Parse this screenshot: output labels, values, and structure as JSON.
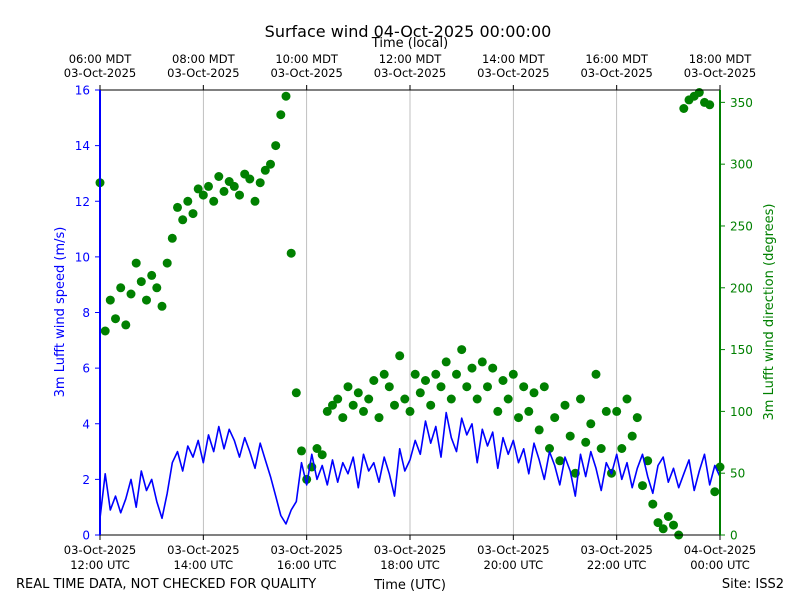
{
  "chart_data": {
    "type": "line",
    "title": "Surface wind 04-Oct-2025 00:00:00",
    "top_axis_label": "Time (local)",
    "xlabel": "Time (UTC)",
    "ylabel_left": "3m Lufft wind speed (m/s)",
    "ylabel_right": "3m Lufft wind direction (degrees)",
    "footer_left": "REAL TIME DATA, NOT CHECKED FOR QUALITY",
    "footer_right": "Site: ISS2",
    "x_range_hours_utc": [
      12,
      24
    ],
    "ylim_left": [
      0,
      16
    ],
    "ylim_right": [
      0,
      360
    ],
    "grid": "vertical",
    "colors": {
      "speed": "#0000ff",
      "direction": "#008000",
      "grid": "#b0b0b0"
    },
    "bottom_ticks": [
      {
        "hour": 12,
        "line1": "03-Oct-2025",
        "line2": "12:00 UTC"
      },
      {
        "hour": 14,
        "line1": "03-Oct-2025",
        "line2": "14:00 UTC"
      },
      {
        "hour": 16,
        "line1": "03-Oct-2025",
        "line2": "16:00 UTC"
      },
      {
        "hour": 18,
        "line1": "03-Oct-2025",
        "line2": "18:00 UTC"
      },
      {
        "hour": 20,
        "line1": "03-Oct-2025",
        "line2": "20:00 UTC"
      },
      {
        "hour": 22,
        "line1": "03-Oct-2025",
        "line2": "22:00 UTC"
      },
      {
        "hour": 24,
        "line1": "04-Oct-2025",
        "line2": "00:00 UTC"
      }
    ],
    "top_ticks": [
      {
        "hour": 12,
        "line1": "06:00 MDT",
        "line2": "03-Oct-2025"
      },
      {
        "hour": 14,
        "line1": "08:00 MDT",
        "line2": "03-Oct-2025"
      },
      {
        "hour": 16,
        "line1": "10:00 MDT",
        "line2": "03-Oct-2025"
      },
      {
        "hour": 18,
        "line1": "12:00 MDT",
        "line2": "03-Oct-2025"
      },
      {
        "hour": 20,
        "line1": "14:00 MDT",
        "line2": "03-Oct-2025"
      },
      {
        "hour": 22,
        "line1": "16:00 MDT",
        "line2": "03-Oct-2025"
      },
      {
        "hour": 24,
        "line1": "18:00 MDT",
        "line2": "03-Oct-2025"
      }
    ],
    "left_ticks": [
      "0",
      "2",
      "4",
      "6",
      "8",
      "10",
      "12",
      "14",
      "16"
    ],
    "right_ticks": [
      "0",
      "50",
      "100",
      "150",
      "200",
      "250",
      "300",
      "350"
    ],
    "series": [
      {
        "name": "wind_speed",
        "axis": "left",
        "style": "line",
        "x": [
          12.0,
          12.1,
          12.2,
          12.3,
          12.4,
          12.5,
          12.6,
          12.7,
          12.8,
          12.9,
          13.0,
          13.1,
          13.2,
          13.3,
          13.4,
          13.5,
          13.6,
          13.7,
          13.8,
          13.9,
          14.0,
          14.1,
          14.2,
          14.3,
          14.4,
          14.5,
          14.6,
          14.7,
          14.8,
          14.9,
          15.0,
          15.1,
          15.2,
          15.3,
          15.4,
          15.5,
          15.6,
          15.7,
          15.8,
          15.9,
          16.0,
          16.1,
          16.2,
          16.3,
          16.4,
          16.5,
          16.6,
          16.7,
          16.8,
          16.9,
          17.0,
          17.1,
          17.2,
          17.3,
          17.4,
          17.5,
          17.6,
          17.7,
          17.8,
          17.9,
          18.0,
          18.1,
          18.2,
          18.3,
          18.4,
          18.5,
          18.6,
          18.7,
          18.8,
          18.9,
          19.0,
          19.1,
          19.2,
          19.3,
          19.4,
          19.5,
          19.6,
          19.7,
          19.8,
          19.9,
          20.0,
          20.1,
          20.2,
          20.3,
          20.4,
          20.5,
          20.6,
          20.7,
          20.8,
          20.9,
          21.0,
          21.1,
          21.2,
          21.3,
          21.4,
          21.5,
          21.6,
          21.7,
          21.8,
          21.9,
          22.0,
          22.1,
          22.2,
          22.3,
          22.4,
          22.5,
          22.6,
          22.7,
          22.8,
          22.9,
          23.0,
          23.1,
          23.2,
          23.3,
          23.4,
          23.5,
          23.6,
          23.7,
          23.8,
          23.9,
          24.0
        ],
        "values": [
          0.6,
          2.2,
          0.9,
          1.4,
          0.8,
          1.3,
          2.0,
          1.0,
          2.3,
          1.6,
          2.0,
          1.2,
          0.6,
          1.5,
          2.6,
          3.0,
          2.3,
          3.2,
          2.8,
          3.4,
          2.6,
          3.6,
          3.0,
          3.9,
          3.1,
          3.8,
          3.4,
          2.8,
          3.5,
          3.0,
          2.4,
          3.3,
          2.7,
          2.1,
          1.4,
          0.7,
          0.4,
          0.9,
          1.2,
          2.6,
          1.8,
          2.9,
          2.0,
          2.5,
          1.8,
          2.7,
          1.9,
          2.6,
          2.2,
          2.8,
          1.7,
          2.9,
          2.3,
          2.6,
          1.9,
          2.8,
          2.2,
          1.4,
          3.1,
          2.3,
          2.7,
          3.4,
          2.9,
          4.1,
          3.3,
          3.9,
          2.8,
          4.4,
          3.5,
          3.0,
          4.2,
          3.6,
          4.0,
          2.6,
          3.8,
          3.2,
          3.7,
          2.4,
          3.5,
          2.9,
          3.4,
          2.6,
          3.1,
          2.2,
          3.3,
          2.7,
          2.0,
          3.0,
          2.5,
          1.8,
          2.8,
          2.3,
          1.4,
          2.9,
          2.1,
          3.0,
          2.4,
          1.6,
          2.6,
          2.2,
          2.9,
          2.0,
          2.6,
          1.7,
          2.4,
          2.9,
          2.1,
          1.5,
          2.5,
          2.8,
          1.9,
          2.4,
          1.7,
          2.2,
          2.7,
          1.6,
          2.3,
          2.9,
          1.8,
          2.5,
          2.1
        ]
      },
      {
        "name": "wind_direction",
        "axis": "right",
        "style": "markers",
        "x": [
          12.0,
          12.1,
          12.2,
          12.3,
          12.4,
          12.5,
          12.6,
          12.7,
          12.8,
          12.9,
          13.0,
          13.1,
          13.2,
          13.3,
          13.4,
          13.5,
          13.6,
          13.7,
          13.8,
          13.9,
          14.0,
          14.1,
          14.2,
          14.3,
          14.4,
          14.5,
          14.6,
          14.7,
          14.8,
          14.9,
          15.0,
          15.1,
          15.2,
          15.3,
          15.4,
          15.5,
          15.6,
          15.7,
          15.8,
          15.9,
          16.0,
          16.1,
          16.2,
          16.3,
          16.4,
          16.5,
          16.6,
          16.7,
          16.8,
          16.9,
          17.0,
          17.1,
          17.2,
          17.3,
          17.4,
          17.5,
          17.6,
          17.7,
          17.8,
          17.9,
          18.0,
          18.1,
          18.2,
          18.3,
          18.4,
          18.5,
          18.6,
          18.7,
          18.8,
          18.9,
          19.0,
          19.1,
          19.2,
          19.3,
          19.4,
          19.5,
          19.6,
          19.7,
          19.8,
          19.9,
          20.0,
          20.1,
          20.2,
          20.3,
          20.4,
          20.5,
          20.6,
          20.7,
          20.8,
          20.9,
          21.0,
          21.1,
          21.2,
          21.3,
          21.4,
          21.5,
          21.6,
          21.7,
          21.8,
          21.9,
          22.0,
          22.1,
          22.2,
          22.3,
          22.4,
          22.5,
          22.6,
          22.7,
          22.8,
          22.9,
          23.0,
          23.1,
          23.2,
          23.3,
          23.4,
          23.5,
          23.6,
          23.7,
          23.8,
          23.9,
          24.0
        ],
        "values": [
          285,
          165,
          190,
          175,
          200,
          170,
          195,
          220,
          205,
          190,
          210,
          200,
          185,
          220,
          240,
          265,
          255,
          270,
          260,
          280,
          275,
          282,
          270,
          290,
          278,
          286,
          282,
          275,
          292,
          288,
          270,
          285,
          295,
          300,
          315,
          340,
          355,
          228,
          115,
          68,
          45,
          55,
          70,
          65,
          100,
          105,
          110,
          95,
          120,
          105,
          115,
          100,
          110,
          125,
          95,
          130,
          120,
          105,
          145,
          110,
          100,
          130,
          115,
          125,
          105,
          130,
          120,
          140,
          110,
          130,
          150,
          120,
          135,
          110,
          140,
          120,
          135,
          100,
          125,
          110,
          130,
          95,
          120,
          100,
          115,
          85,
          120,
          70,
          95,
          60,
          105,
          80,
          50,
          110,
          75,
          90,
          130,
          70,
          100,
          50,
          100,
          70,
          110,
          80,
          95,
          40,
          60,
          25,
          10,
          5,
          15,
          8,
          0,
          345,
          352,
          355,
          358,
          350,
          348,
          35,
          55
        ]
      }
    ]
  }
}
